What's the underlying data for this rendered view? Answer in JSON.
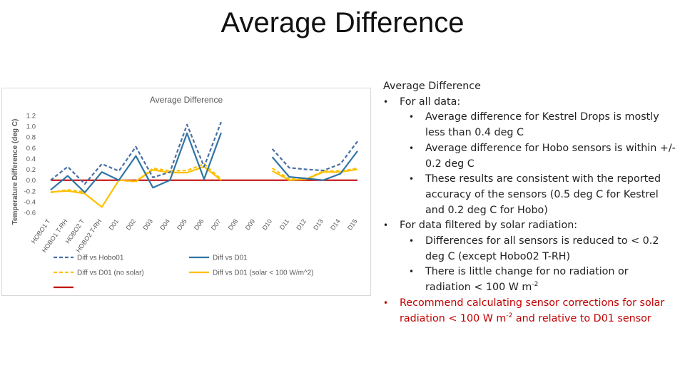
{
  "slide": {
    "title": "Average Difference"
  },
  "chart_data": {
    "type": "line",
    "title": "Average Difference",
    "xlabel": "",
    "ylabel": "Temperature Difference (deg C)",
    "ylim": [
      -0.6,
      1.2
    ],
    "yticks": [
      "1.2",
      "1.0",
      "0.8",
      "0.6",
      "0.4",
      "0.2",
      "0.0",
      "-0.2",
      "-0.4",
      "-0.6"
    ],
    "grid": false,
    "legend_position": "bottom",
    "categories": [
      "HOBO1 T",
      "HOBO1 T-RH",
      "HOBO2 T",
      "HOBO2 T-RH",
      "D01",
      "D02",
      "D03",
      "D04",
      "D05",
      "D06",
      "D07",
      "D08",
      "D09",
      "D10",
      "D11",
      "D12",
      "D13",
      "D14",
      "D15"
    ],
    "series": [
      {
        "name": "Diff vs Hobo01",
        "color": "#4a6fa5",
        "dash": true,
        "values": [
          0.0,
          0.25,
          -0.07,
          0.3,
          0.17,
          0.62,
          0.05,
          0.15,
          1.03,
          0.25,
          1.08,
          null,
          null,
          0.58,
          0.23,
          0.2,
          0.18,
          0.3,
          0.72
        ]
      },
      {
        "name": "Diff vs D01",
        "color": "#2e75a6",
        "dash": false,
        "values": [
          -0.18,
          0.08,
          -0.23,
          0.15,
          0.0,
          0.45,
          -0.14,
          0.0,
          0.87,
          0.02,
          0.88,
          null,
          null,
          0.43,
          0.06,
          0.03,
          0.0,
          0.12,
          0.54
        ]
      },
      {
        "name": "Diff vs D01 (no solar)",
        "color": "#ffc000",
        "dash": true,
        "values": [
          -0.23,
          -0.18,
          -0.22,
          null,
          0.0,
          -0.03,
          0.22,
          0.17,
          0.18,
          0.3,
          0.02,
          null,
          null,
          0.22,
          0.02,
          0.02,
          0.17,
          0.17,
          0.22
        ]
      },
      {
        "name": "Diff vs D01 (solar < 100 W/m^2)",
        "color": "#ffc000",
        "dash": false,
        "values": [
          -0.22,
          -0.2,
          -0.25,
          -0.5,
          0.0,
          -0.02,
          0.19,
          0.14,
          0.14,
          0.25,
          0.0,
          null,
          null,
          0.17,
          0.0,
          0.02,
          0.15,
          0.15,
          0.2
        ]
      },
      {
        "name": "",
        "color": "#c00000",
        "dash": false,
        "values": [
          0.0,
          0.0,
          0.0,
          0.0,
          0.0,
          0.0,
          0.0,
          0.0,
          0.0,
          0.0,
          0.0,
          0.0,
          0.0,
          0.0,
          0.0,
          0.0,
          0.0,
          0.0,
          0.0
        ]
      }
    ]
  },
  "notes": {
    "heading": "Average Difference",
    "all_data": "For all data:",
    "kestrel": "Average difference for Kestrel Drops is mostly less than 0.4 deg C",
    "hobo": "Average difference for Hobo sensors is within +/- 0.2 deg C",
    "consistent": "These results are consistent with the reported accuracy of the sensors (0.5 deg C for Kestrel and 0.2 deg C for Hobo)",
    "filtered": "For data filtered by solar radiation:",
    "reduced": "Differences for all sensors is reduced to < 0.2 deg C (except Hobo02 T-RH)",
    "little_change_pre": "There is little change for no radiation or radiation < 100 W m",
    "little_change_sup": "-2",
    "recommend_pre": "Recommend calculating sensor corrections for solar radiation < 100 W m",
    "recommend_sup": "-2",
    "recommend_post": " and relative to D01 sensor"
  }
}
